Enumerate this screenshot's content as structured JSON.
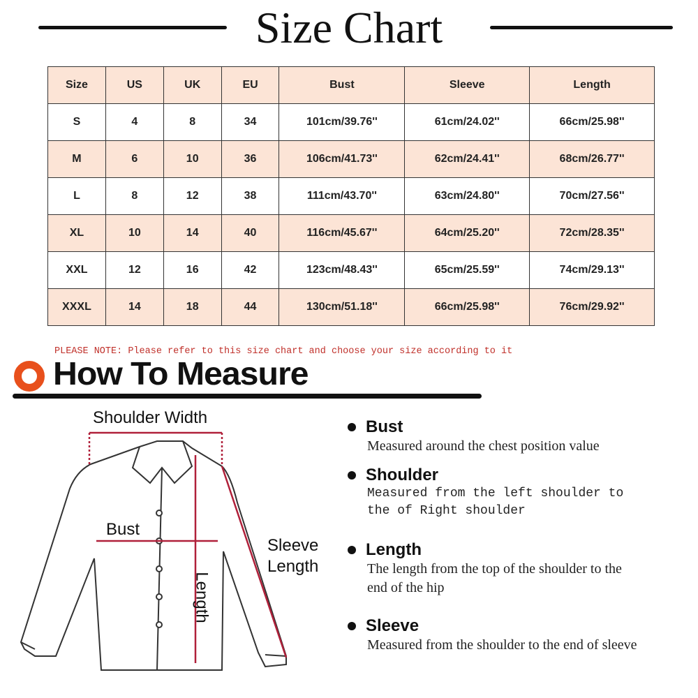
{
  "title": "Size Chart",
  "table": {
    "headers": [
      "Size",
      "US",
      "UK",
      "EU",
      "Bust",
      "Sleeve",
      "Length"
    ],
    "rows": [
      [
        "S",
        "4",
        "8",
        "34",
        "101cm/39.76''",
        "61cm/24.02''",
        "66cm/25.98''"
      ],
      [
        "M",
        "6",
        "10",
        "36",
        "106cm/41.73''",
        "62cm/24.41''",
        "68cm/26.77''"
      ],
      [
        "L",
        "8",
        "12",
        "38",
        "111cm/43.70''",
        "63cm/24.80''",
        "70cm/27.56''"
      ],
      [
        "XL",
        "10",
        "14",
        "40",
        "116cm/45.67''",
        "64cm/25.20''",
        "72cm/28.35''"
      ],
      [
        "XXL",
        "12",
        "16",
        "42",
        "123cm/48.43''",
        "65cm/25.59''",
        "74cm/29.13''"
      ],
      [
        "XXXL",
        "14",
        "18",
        "44",
        "130cm/51.18''",
        "66cm/25.98''",
        "76cm/29.92''"
      ]
    ]
  },
  "note": "PLEASE NOTE: Please refer to this size chart and choose your size according to it",
  "how_to_measure": "How To Measure",
  "diagram_labels": {
    "shoulder_width": "Shoulder Width",
    "bust": "Bust",
    "sleeve": "Sleeve",
    "sleeve2": "Length",
    "length": "Length"
  },
  "items": [
    {
      "title": "Bust",
      "desc": "Measured around the chest position value"
    },
    {
      "title": "Shoulder",
      "desc": "Measured from the left shoulder to the of Right shoulder"
    },
    {
      "title": "Length",
      "desc": "The length from the top of the shoulder to the end of the hip"
    },
    {
      "title": "Sleeve",
      "desc": "Measured from the shoulder to the end of sleeve"
    }
  ],
  "colors": {
    "header_fill": "#fce4d6",
    "note": "#c0302a",
    "accent": "#e8501c",
    "measure_line": "#b0203a"
  }
}
